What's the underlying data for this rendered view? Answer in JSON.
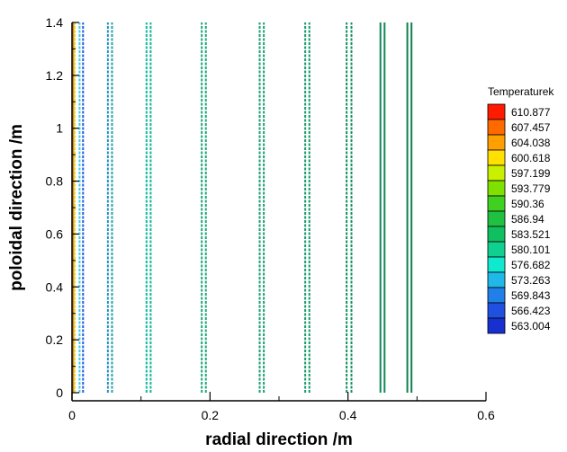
{
  "chart_data": {
    "type": "line",
    "title": "",
    "xlabel": "radial direction /m",
    "ylabel": "poloidal direction /m",
    "xlim": [
      0,
      0.6
    ],
    "ylim": [
      0,
      1.4
    ],
    "x_ticks": [
      "0",
      "0.2",
      "0.4",
      "0.6"
    ],
    "y_ticks": [
      "0",
      "0.2",
      "0.4",
      "0.6",
      "0.8",
      "1",
      "1.2",
      "1.4"
    ],
    "grid": false,
    "legend": {
      "title": "Temperaturek",
      "placement": "right",
      "levels": [
        {
          "label": "610.877",
          "color": "#ff1a00"
        },
        {
          "label": "607.457",
          "color": "#ff6a00"
        },
        {
          "label": "604.038",
          "color": "#ffa000"
        },
        {
          "label": "600.618",
          "color": "#ffe000"
        },
        {
          "label": "597.199",
          "color": "#c8f000"
        },
        {
          "label": "593.779",
          "color": "#80e000"
        },
        {
          "label": "590.36",
          "color": "#40d020"
        },
        {
          "label": "586.94",
          "color": "#20c040"
        },
        {
          "label": "583.521",
          "color": "#10c060"
        },
        {
          "label": "580.101",
          "color": "#10d090"
        },
        {
          "label": "576.682",
          "color": "#10e8d0"
        },
        {
          "label": "573.263",
          "color": "#20b8e8"
        },
        {
          "label": "569.843",
          "color": "#2080e8"
        },
        {
          "label": "566.423",
          "color": "#2050e0"
        },
        {
          "label": "563.004",
          "color": "#1830d0"
        }
      ]
    },
    "series": [
      {
        "x": 0.002,
        "y": [
          0,
          1.4
        ],
        "color": "#d08a20",
        "style": "solid"
      },
      {
        "x": 0.004,
        "y": [
          0,
          1.4
        ],
        "color": "#e8d830",
        "style": "dashed"
      },
      {
        "x": 0.011,
        "y": [
          0,
          1.4
        ],
        "color": "#40c8e0",
        "style": "dashed"
      },
      {
        "x": 0.016,
        "y": [
          0,
          1.4
        ],
        "color": "#2060e0",
        "style": "dashed"
      },
      {
        "x": 0.052,
        "y": [
          0,
          1.4
        ],
        "color": "#2090c0",
        "style": "dashed"
      },
      {
        "x": 0.058,
        "y": [
          0,
          1.4
        ],
        "color": "#20a0a8",
        "style": "dashed"
      },
      {
        "x": 0.108,
        "y": [
          0,
          1.4
        ],
        "color": "#10b8a0",
        "style": "dashed"
      },
      {
        "x": 0.114,
        "y": [
          0,
          1.4
        ],
        "color": "#10b898",
        "style": "dashed"
      },
      {
        "x": 0.188,
        "y": [
          0,
          1.4
        ],
        "color": "#1aa878",
        "style": "dashed"
      },
      {
        "x": 0.194,
        "y": [
          0,
          1.4
        ],
        "color": "#1aa878",
        "style": "dashed"
      },
      {
        "x": 0.272,
        "y": [
          0,
          1.4
        ],
        "color": "#1aa070",
        "style": "dashed"
      },
      {
        "x": 0.278,
        "y": [
          0,
          1.4
        ],
        "color": "#1aa070",
        "style": "dashed"
      },
      {
        "x": 0.338,
        "y": [
          0,
          1.4
        ],
        "color": "#159868",
        "style": "dashed"
      },
      {
        "x": 0.344,
        "y": [
          0,
          1.4
        ],
        "color": "#159868",
        "style": "dashed"
      },
      {
        "x": 0.398,
        "y": [
          0,
          1.4
        ],
        "color": "#159060",
        "style": "dashed"
      },
      {
        "x": 0.405,
        "y": [
          0,
          1.4
        ],
        "color": "#159060",
        "style": "dashed"
      },
      {
        "x": 0.447,
        "y": [
          0,
          1.4
        ],
        "color": "#108858",
        "style": "solid"
      },
      {
        "x": 0.453,
        "y": [
          0,
          1.4
        ],
        "color": "#108858",
        "style": "solid"
      },
      {
        "x": 0.486,
        "y": [
          0,
          1.4
        ],
        "color": "#108050",
        "style": "solid"
      },
      {
        "x": 0.492,
        "y": [
          0,
          1.4
        ],
        "color": "#108050",
        "style": "solid"
      }
    ]
  }
}
